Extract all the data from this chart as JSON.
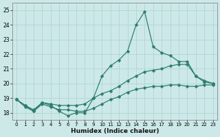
{
  "xlabel": "Humidex (Indice chaleur)",
  "bg_color": "#cde8e8",
  "grid_color": "#b0d4d4",
  "line_color": "#2e7d6e",
  "xlim": [
    -0.5,
    23.5
  ],
  "ylim": [
    17.5,
    25.5
  ],
  "yticks": [
    18,
    19,
    20,
    21,
    22,
    23,
    24,
    25
  ],
  "xticks": [
    0,
    1,
    2,
    3,
    4,
    5,
    6,
    7,
    8,
    9,
    10,
    11,
    12,
    13,
    14,
    15,
    16,
    17,
    18,
    19,
    20,
    21,
    22,
    23
  ],
  "line1_x": [
    0,
    1,
    2,
    3,
    4,
    5,
    6,
    7,
    8,
    9,
    10,
    11,
    12,
    13,
    14,
    15,
    16,
    17,
    18,
    19,
    20,
    21,
    22,
    23
  ],
  "line1_y": [
    18.9,
    18.4,
    18.1,
    18.7,
    18.5,
    18.1,
    17.8,
    18.0,
    18.0,
    19.0,
    20.5,
    21.2,
    21.6,
    22.2,
    24.0,
    24.9,
    22.5,
    22.1,
    21.9,
    21.5,
    21.5,
    20.5,
    20.1,
    20.0
  ],
  "line2_x": [
    0,
    1,
    2,
    3,
    4,
    5,
    6,
    7,
    8,
    9,
    10,
    11,
    12,
    13,
    14,
    15,
    16,
    17,
    18,
    19,
    20,
    21,
    22,
    23
  ],
  "line2_y": [
    18.9,
    18.5,
    18.2,
    18.7,
    18.6,
    18.5,
    18.5,
    18.5,
    18.6,
    19.0,
    19.3,
    19.5,
    19.8,
    20.2,
    20.5,
    20.8,
    20.9,
    21.0,
    21.2,
    21.3,
    21.3,
    20.5,
    20.2,
    20.0
  ],
  "line3_x": [
    0,
    1,
    2,
    3,
    4,
    5,
    6,
    7,
    8,
    9,
    10,
    11,
    12,
    13,
    14,
    15,
    16,
    17,
    18,
    19,
    20,
    21,
    22,
    23
  ],
  "line3_y": [
    18.9,
    18.5,
    18.1,
    18.6,
    18.4,
    18.2,
    18.2,
    18.1,
    18.1,
    18.3,
    18.6,
    18.9,
    19.1,
    19.4,
    19.6,
    19.7,
    19.8,
    19.8,
    19.9,
    19.9,
    19.8,
    19.8,
    19.9,
    19.9
  ]
}
